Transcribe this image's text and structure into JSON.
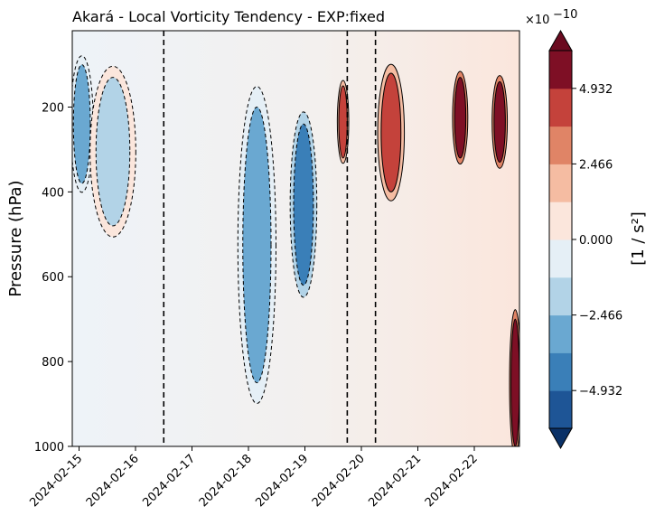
{
  "chart_data": {
    "type": "heatmap",
    "subtype": "filled-contour",
    "title": "Akará - Local Vorticity Tendency - EXP:fixed",
    "ylabel": "Pressure (hPa)",
    "xlabel": "",
    "y_axis": {
      "ticks": [
        200,
        400,
        600,
        800,
        1000
      ],
      "inverted": true,
      "range": [
        1000,
        20
      ]
    },
    "x_axis": {
      "ticks": [
        "2024-02-15",
        "2024-02-16",
        "2024-02-17",
        "2024-02-18",
        "2024-02-19",
        "2024-02-20",
        "2024-02-21",
        "2024-02-22"
      ],
      "range_days": [
        -0.12,
        7.8
      ],
      "tick_rotation_deg": 45
    },
    "vertical_reference_lines": [
      {
        "date": "2024-02-16",
        "hour": 12,
        "style": "dashed"
      },
      {
        "date": "2024-02-19",
        "hour": 18,
        "style": "dashed"
      },
      {
        "date": "2024-02-20",
        "hour": 6,
        "style": "dashed"
      }
    ],
    "colorbar": {
      "label": "[1 / s²]",
      "multiplier": "×10",
      "multiplier_exponent": "−10",
      "tick_labels": [
        "4.932",
        "2.466",
        "0.000",
        "−2.466",
        "−4.932"
      ],
      "tick_values": [
        4.932e-10,
        2.466e-10,
        0,
        -2.466e-10,
        -4.932e-10
      ],
      "levels": [
        -6.165,
        -4.932,
        -3.699,
        -2.466,
        -1.233,
        0,
        1.233,
        2.466,
        3.699,
        4.932,
        6.165
      ],
      "extend": "both",
      "colors_low_to_high": [
        "#1e5596",
        "#3a7fb8",
        "#6aa8d1",
        "#b2d3e7",
        "#e5eff6",
        "#fbe6dc",
        "#f5bca2",
        "#e08466",
        "#c4423b",
        "#7e0f25"
      ],
      "under_color": "#0a3167",
      "over_color": "#6a0a1f"
    },
    "field_regions": [
      {
        "day_range": [
          -0.1,
          0.2
        ],
        "pressure_range": [
          100,
          380
        ],
        "level": -2.466
      },
      {
        "day_range": [
          0.3,
          0.9
        ],
        "pressure_range": [
          130,
          480
        ],
        "level": -1.233
      },
      {
        "day_range": [
          2.9,
          3.4
        ],
        "pressure_range": [
          200,
          850
        ],
        "level": -2.466
      },
      {
        "day_range": [
          3.8,
          4.15
        ],
        "pressure_range": [
          240,
          620
        ],
        "level": -3.699
      },
      {
        "day_range": [
          4.6,
          4.75
        ],
        "pressure_range": [
          150,
          320
        ],
        "level": 3.699
      },
      {
        "day_range": [
          5.35,
          5.7
        ],
        "pressure_range": [
          120,
          400
        ],
        "level": 3.699
      },
      {
        "day_range": [
          6.65,
          6.85
        ],
        "pressure_range": [
          130,
          320
        ],
        "level": 4.932
      },
      {
        "day_range": [
          7.35,
          7.55
        ],
        "pressure_range": [
          140,
          330
        ],
        "level": 4.932
      },
      {
        "day_range": [
          7.65,
          7.8
        ],
        "pressure_range": [
          700,
          1000
        ],
        "level": 4.932
      }
    ]
  }
}
